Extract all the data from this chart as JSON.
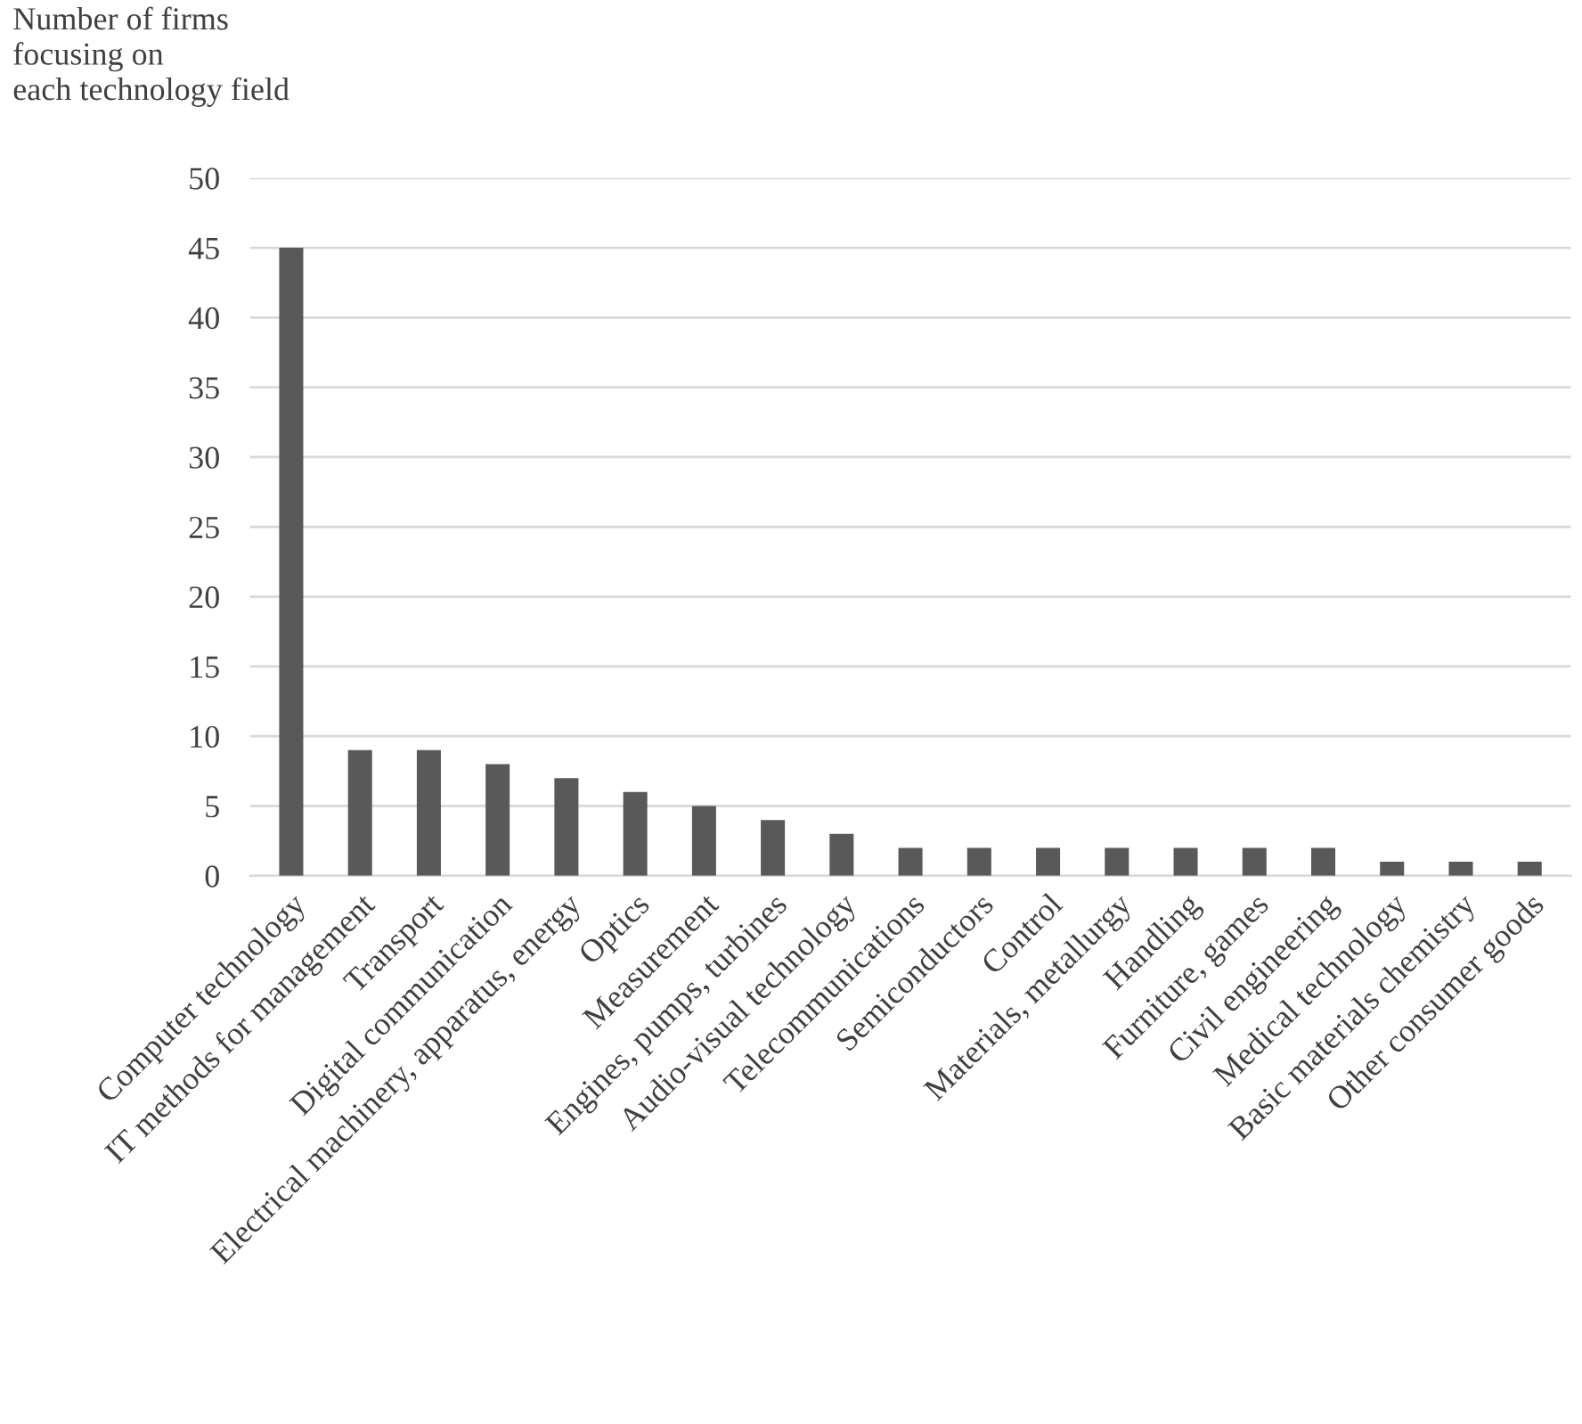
{
  "chart_data": {
    "type": "bar",
    "ylabel": "Number of firms\nfocusing on\neach technology field",
    "categories": [
      "Computer technology",
      "IT methods for management",
      "Transport",
      "Digital communication",
      "Electrical machinery, apparatus, energy",
      "Optics",
      "Measurement",
      "Engines, pumps, turbines",
      "Audio-visual technology",
      "Telecommunications",
      "Semiconductors",
      "Control",
      "Materials, metallurgy",
      "Handling",
      "Furniture, games",
      "Civil engineering",
      "Medical technology",
      "Basic materials chemistry",
      "Other consumer goods"
    ],
    "values": [
      45,
      9,
      9,
      8,
      7,
      6,
      5,
      4,
      3,
      2,
      2,
      2,
      2,
      2,
      2,
      2,
      1,
      1,
      1
    ],
    "color": "#595959",
    "ylim": [
      0,
      50
    ],
    "yticks": [
      0,
      5,
      10,
      15,
      20,
      25,
      30,
      35,
      40,
      45,
      50
    ],
    "grid": "y",
    "legend": false
  }
}
